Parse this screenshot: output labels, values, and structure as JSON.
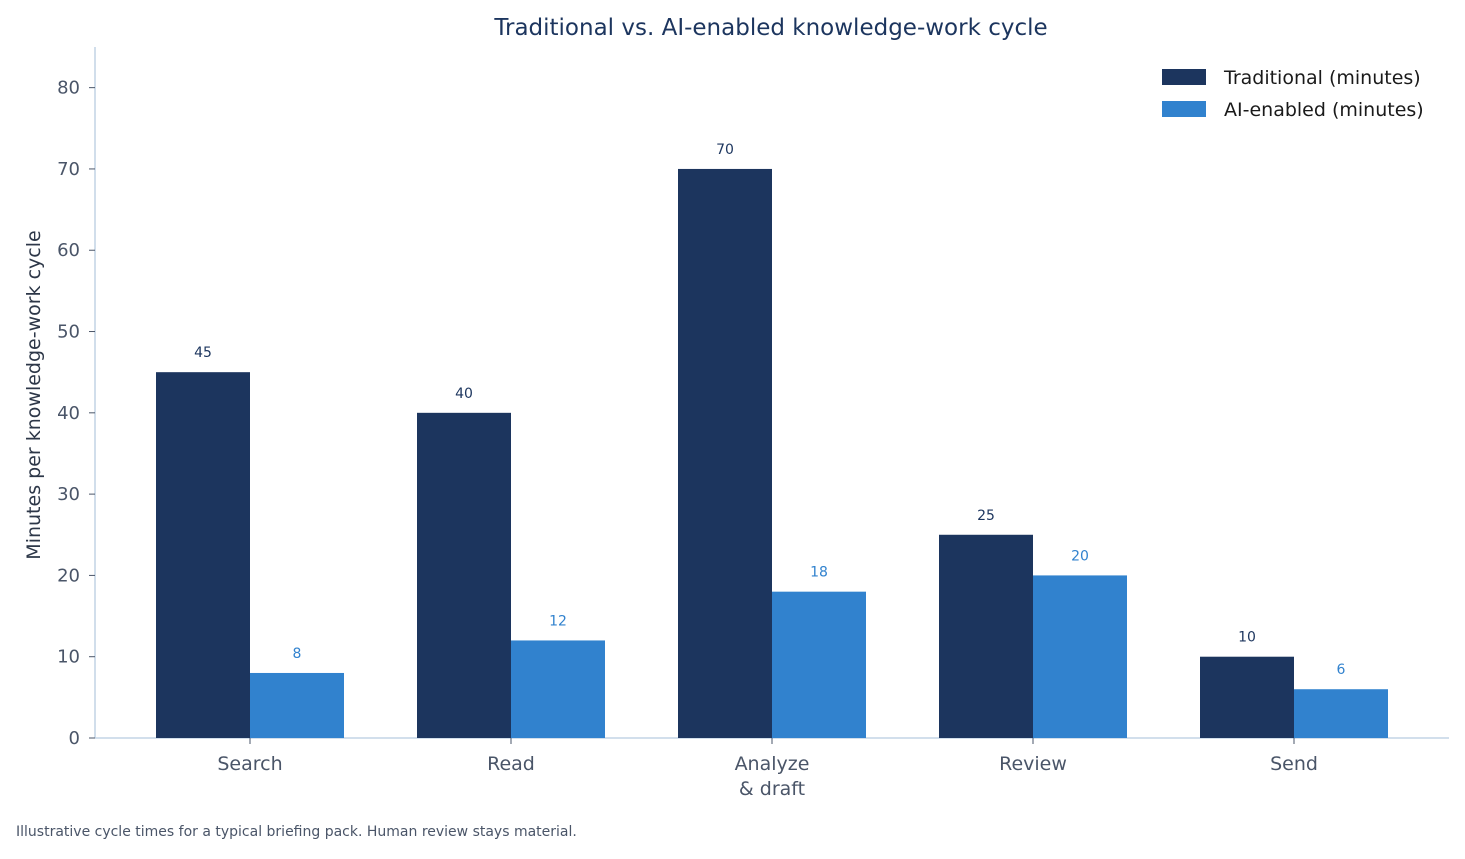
{
  "chart_data": {
    "type": "bar",
    "title": "Traditional vs. AI-enabled knowledge-work cycle",
    "ylabel": "Minutes per knowledge-work cycle",
    "xlabel": "",
    "categories": [
      [
        "Search"
      ],
      [
        "Read"
      ],
      [
        "Analyze",
        "& draft"
      ],
      [
        "Review"
      ],
      [
        "Send"
      ]
    ],
    "series": [
      {
        "name": "Traditional (minutes)",
        "values": [
          45,
          40,
          70,
          25,
          10
        ],
        "color": "#1c355e"
      },
      {
        "name": "AI-enabled (minutes)",
        "values": [
          8,
          12,
          18,
          20,
          6
        ],
        "color": "#3182ce"
      }
    ],
    "ylim": [
      0,
      85
    ],
    "yticks": [
      0,
      10,
      20,
      30,
      40,
      50,
      60,
      70,
      80
    ],
    "grid": false,
    "legend": "top-right",
    "axis_color": "#b8cce0"
  },
  "footnote": "Illustrative cycle times for a typical briefing pack. Human review stays material."
}
